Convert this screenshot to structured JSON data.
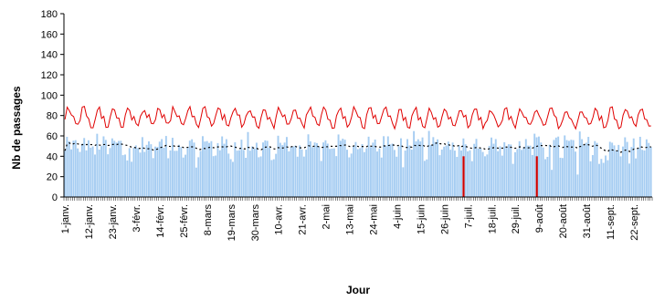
{
  "chart_data": {
    "type": "bar",
    "title": "",
    "xlabel": "Jour",
    "ylabel": "Nb de passages",
    "ylim": [
      0,
      180
    ],
    "yticks": [
      0,
      20,
      40,
      60,
      80,
      100,
      120,
      140,
      160,
      180
    ],
    "grid": false,
    "legend": "none",
    "x_start": "2009-01-01",
    "x_end": "2009-09-30",
    "xtick_labels": [
      "1-janv.",
      "12-janv.",
      "23-janv.",
      "3-févr.",
      "14-févr.",
      "25-févr.",
      "8-mars",
      "19-mars",
      "30-mars",
      "10-avr.",
      "21-avr.",
      "2-mai",
      "13-mai",
      "24-mai",
      "4-juin",
      "15-juin",
      "26-juin",
      "7-juil.",
      "18-juil.",
      "29-juil.",
      "9-août",
      "20-août",
      "31-août",
      "11-sept.",
      "22-sept."
    ],
    "xtick_interval_days": 11,
    "bars_seed": {
      "base": 50,
      "weekly_amplitude": 7,
      "noise_amplitude": 8
    },
    "series": [
      {
        "name": "",
        "style": "bar",
        "color": "#a6cdf2"
      },
      {
        "name": "",
        "style": "line",
        "color": "#e00000"
      },
      {
        "name": "",
        "style": "dashed-line",
        "color": "#000000"
      },
      {
        "name": "",
        "style": "marker-bar",
        "color": "#cc0000"
      }
    ],
    "alert_days": [
      {
        "date": "2009-07-05",
        "value": 40
      },
      {
        "date": "2009-08-08",
        "value": 40
      }
    ],
    "colors": {
      "bars": "#a6cdf2",
      "threshold": "#e00000",
      "mean": "#000000",
      "alerts": "#cc0000"
    }
  }
}
